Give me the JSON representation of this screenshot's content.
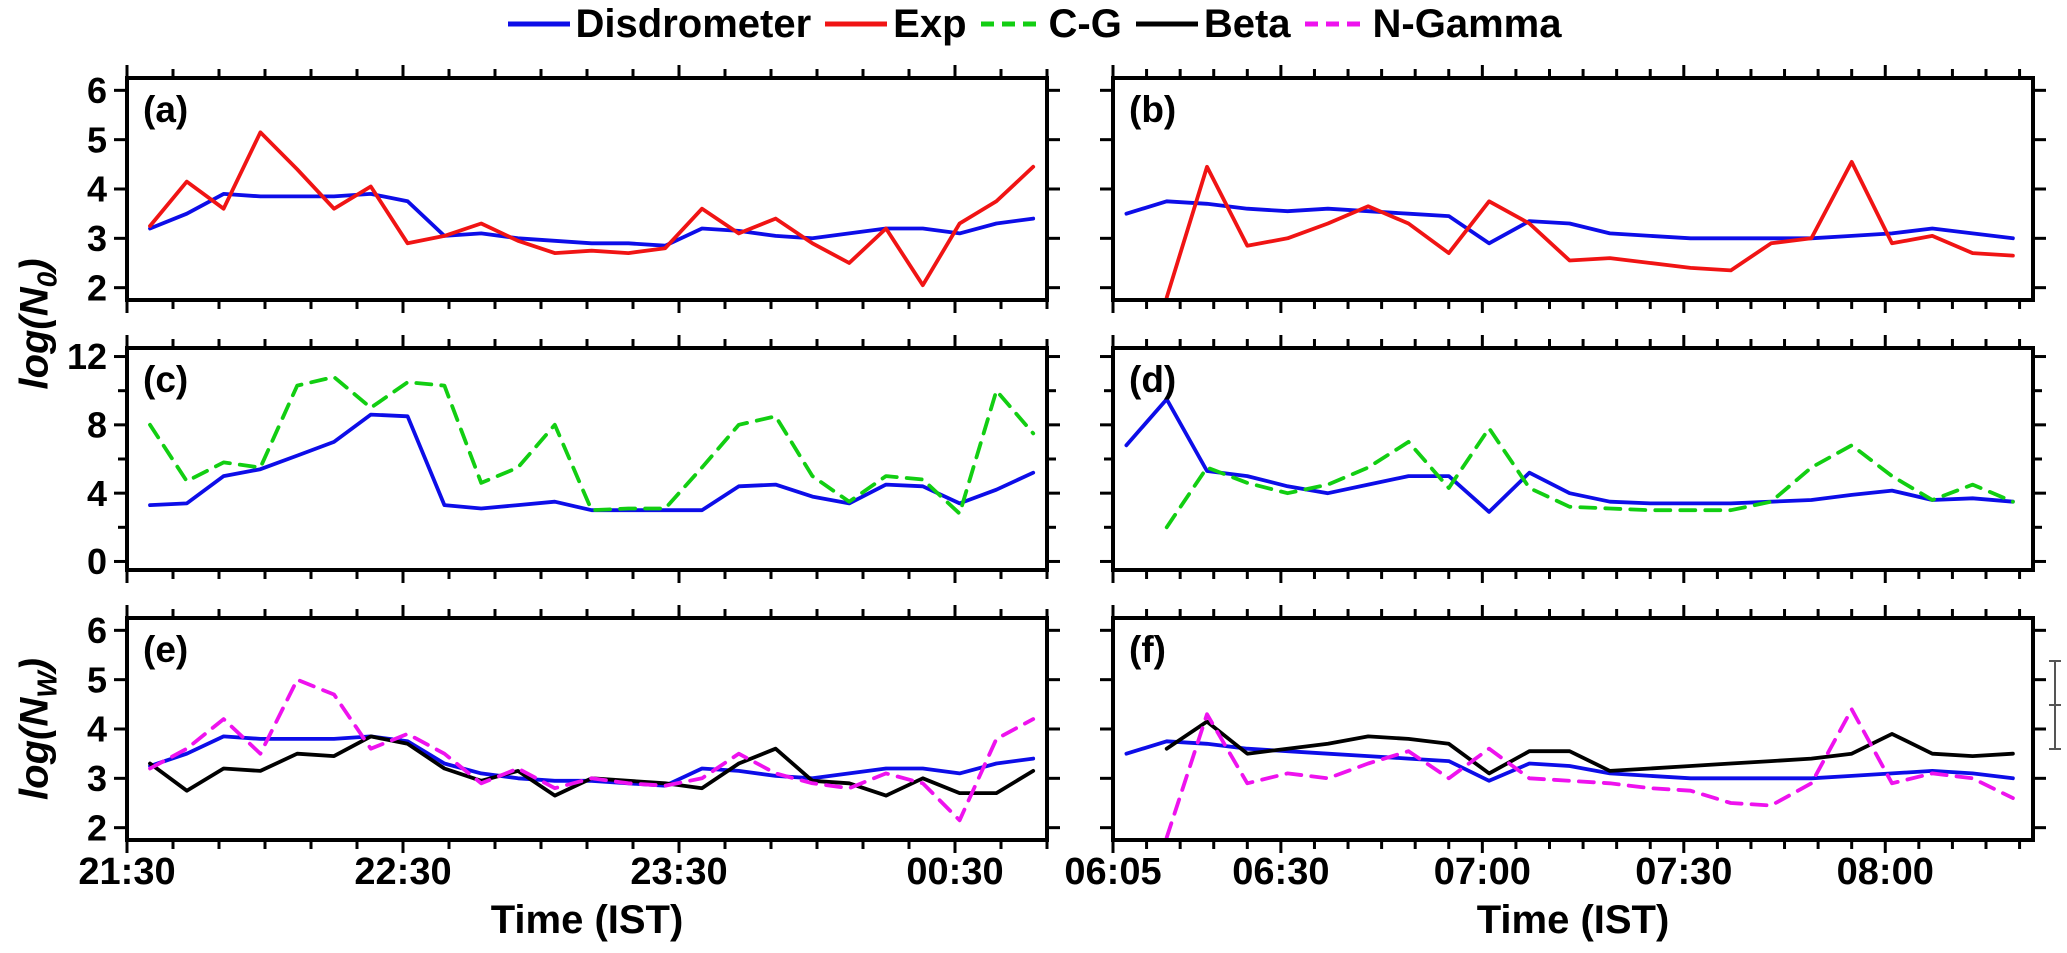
{
  "figure": {
    "background": "#ffffff",
    "axis_color": "#000000",
    "legend": {
      "items": [
        {
          "label": "Disdrometer",
          "color": "#0d0de8",
          "style": "solid"
        },
        {
          "label": "Exp",
          "color": "#f01414",
          "style": "solid"
        },
        {
          "label": "C-G",
          "color": "#12ce12",
          "style": "dashed"
        },
        {
          "label": "Beta",
          "color": "#000000",
          "style": "solid"
        },
        {
          "label": "N-Gamma",
          "color": "#ee12ee",
          "style": "dashed"
        }
      ]
    },
    "ylabels": [
      {
        "pre": "log(N",
        "sub": "0",
        "post": ")"
      },
      {
        "pre": "log(N",
        "sub": "W",
        "post": ")"
      }
    ]
  },
  "chart_data": {
    "type": "line",
    "columns": [
      {
        "xlabel": "Time (IST)",
        "x_range": [
          0,
          200
        ],
        "minor_step": 10,
        "major_ticks": [
          {
            "pos": 0,
            "label": "21:30"
          },
          {
            "pos": 60,
            "label": "22:30"
          },
          {
            "pos": 120,
            "label": "23:30"
          },
          {
            "pos": 180,
            "label": "00:30"
          }
        ],
        "x": [
          5,
          13,
          21,
          29,
          37,
          45,
          53,
          61,
          69,
          77,
          85,
          93,
          101,
          109,
          117,
          125,
          133,
          141,
          149,
          157,
          165,
          173,
          181,
          189,
          197
        ]
      },
      {
        "xlabel": "Time (IST)",
        "x_range": [
          0,
          137
        ],
        "minor_step": 5,
        "major_ticks": [
          {
            "pos": 0,
            "label": "06:05"
          },
          {
            "pos": 25,
            "label": "06:30"
          },
          {
            "pos": 55,
            "label": "07:00"
          },
          {
            "pos": 85,
            "label": "07:30"
          },
          {
            "pos": 115,
            "label": "08:00"
          }
        ],
        "x": [
          2,
          8,
          14,
          20,
          26,
          32,
          38,
          44,
          50,
          56,
          62,
          68,
          74,
          80,
          86,
          92,
          98,
          104,
          110,
          116,
          122,
          128,
          134
        ]
      }
    ],
    "rows": [
      {
        "y_range": [
          1.75,
          6.25
        ],
        "major_ticks": [
          2,
          3,
          4,
          5,
          6
        ],
        "minor_ticks": [],
        "tick_labels": [
          "2",
          "3",
          "4",
          "5",
          "6"
        ]
      },
      {
        "y_range": [
          -0.5,
          12.5
        ],
        "major_ticks": [
          0,
          4,
          8,
          12
        ],
        "minor_ticks": [
          2,
          6,
          10
        ],
        "tick_labels": [
          "0",
          "4",
          "8",
          "12"
        ]
      },
      {
        "y_range": [
          1.75,
          6.25
        ],
        "major_ticks": [
          2,
          3,
          4,
          5,
          6
        ],
        "minor_ticks": [],
        "tick_labels": [
          "2",
          "3",
          "4",
          "5",
          "6"
        ]
      }
    ],
    "panels": [
      {
        "id": "a",
        "label": "(a)",
        "row": 0,
        "col": 0,
        "series": [
          {
            "name": "Disdrometer",
            "y": [
              3.2,
              3.5,
              3.9,
              3.85,
              3.85,
              3.85,
              3.9,
              3.75,
              3.05,
              3.1,
              3.0,
              2.95,
              2.9,
              2.9,
              2.85,
              3.2,
              3.15,
              3.05,
              3.0,
              3.1,
              3.2,
              3.2,
              3.1,
              3.3,
              3.4
            ]
          },
          {
            "name": "Exp",
            "y": [
              3.25,
              4.15,
              3.6,
              5.15,
              4.4,
              3.6,
              4.05,
              2.9,
              3.05,
              3.3,
              2.95,
              2.7,
              2.75,
              2.7,
              2.8,
              3.6,
              3.1,
              3.4,
              2.9,
              2.5,
              3.2,
              2.05,
              3.3,
              3.75,
              4.45
            ]
          }
        ]
      },
      {
        "id": "b",
        "label": "(b)",
        "row": 0,
        "col": 1,
        "series": [
          {
            "name": "Disdrometer",
            "y": [
              3.5,
              3.75,
              3.7,
              3.6,
              3.55,
              3.6,
              3.55,
              3.5,
              3.45,
              2.9,
              3.35,
              3.3,
              3.1,
              3.05,
              3.0,
              3.0,
              3.0,
              3.0,
              3.05,
              3.1,
              3.2,
              3.1,
              3.0
            ]
          },
          {
            "name": "Exp",
            "y": [
              null,
              1.8,
              4.45,
              2.85,
              3.0,
              3.3,
              3.65,
              3.3,
              2.7,
              3.75,
              3.3,
              2.55,
              2.6,
              2.5,
              2.4,
              2.35,
              2.9,
              3.0,
              4.55,
              2.9,
              3.05,
              2.7,
              2.65
            ]
          }
        ]
      },
      {
        "id": "c",
        "label": "(c)",
        "row": 1,
        "col": 0,
        "series": [
          {
            "name": "Disdrometer",
            "y": [
              3.3,
              3.4,
              5.0,
              5.4,
              6.2,
              7.0,
              8.6,
              8.5,
              3.3,
              3.1,
              3.3,
              3.5,
              3.0,
              3.0,
              3.0,
              3.0,
              4.4,
              4.5,
              3.8,
              3.4,
              4.5,
              4.4,
              3.4,
              4.2,
              5.2
            ]
          },
          {
            "name": "C-G",
            "y": [
              8.0,
              4.7,
              5.8,
              5.5,
              10.3,
              10.8,
              9.0,
              10.5,
              10.3,
              4.6,
              5.5,
              8.0,
              3.0,
              3.1,
              3.1,
              5.5,
              8.0,
              8.5,
              5.0,
              3.5,
              5.0,
              4.8,
              2.8,
              10.0,
              7.5
            ]
          }
        ]
      },
      {
        "id": "d",
        "label": "(d)",
        "row": 1,
        "col": 1,
        "series": [
          {
            "name": "Disdrometer",
            "y": [
              6.8,
              9.5,
              5.3,
              5.0,
              4.4,
              4.0,
              4.5,
              5.0,
              5.0,
              2.9,
              5.2,
              4.0,
              3.5,
              3.4,
              3.4,
              3.4,
              3.5,
              3.6,
              3.9,
              4.15,
              3.6,
              3.7,
              3.5
            ]
          },
          {
            "name": "C-G",
            "y": [
              null,
              2.0,
              5.5,
              4.6,
              4.0,
              4.5,
              5.5,
              7.0,
              4.3,
              7.8,
              4.3,
              3.2,
              3.1,
              3.0,
              3.0,
              3.0,
              3.5,
              5.5,
              6.8,
              5.0,
              3.6,
              4.5,
              3.5
            ]
          }
        ]
      },
      {
        "id": "e",
        "label": "(e)",
        "row": 2,
        "col": 0,
        "series": [
          {
            "name": "Disdrometer",
            "y": [
              3.25,
              3.5,
              3.85,
              3.8,
              3.8,
              3.8,
              3.85,
              3.75,
              3.3,
              3.1,
              3.0,
              2.95,
              2.95,
              2.9,
              2.85,
              3.2,
              3.15,
              3.05,
              3.0,
              3.1,
              3.2,
              3.2,
              3.1,
              3.3,
              3.4
            ]
          },
          {
            "name": "Beta",
            "y": [
              3.3,
              2.75,
              3.2,
              3.15,
              3.5,
              3.45,
              3.85,
              3.7,
              3.2,
              2.95,
              3.15,
              2.65,
              3.0,
              2.95,
              2.9,
              2.8,
              3.3,
              3.6,
              2.95,
              2.9,
              2.65,
              3.0,
              2.7,
              2.7,
              3.15
            ]
          },
          {
            "name": "N-Gamma",
            "y": [
              3.2,
              3.6,
              4.2,
              3.5,
              5.0,
              4.7,
              3.6,
              3.9,
              3.5,
              2.9,
              3.2,
              2.8,
              3.0,
              2.9,
              2.85,
              3.0,
              3.5,
              3.1,
              2.9,
              2.8,
              3.1,
              2.9,
              2.15,
              3.8,
              4.2
            ]
          }
        ]
      },
      {
        "id": "f",
        "label": "(f)",
        "row": 2,
        "col": 1,
        "series": [
          {
            "name": "Disdrometer",
            "y": [
              3.5,
              3.75,
              3.7,
              3.6,
              3.55,
              3.5,
              3.45,
              3.4,
              3.35,
              2.95,
              3.3,
              3.25,
              3.1,
              3.05,
              3.0,
              3.0,
              3.0,
              3.0,
              3.05,
              3.1,
              3.15,
              3.1,
              3.0
            ]
          },
          {
            "name": "Beta",
            "y": [
              null,
              3.6,
              4.15,
              3.5,
              3.6,
              3.7,
              3.85,
              3.8,
              3.7,
              3.1,
              3.55,
              3.55,
              3.15,
              3.2,
              3.25,
              3.3,
              3.35,
              3.4,
              3.5,
              3.9,
              3.5,
              3.45,
              3.5
            ]
          },
          {
            "name": "N-Gamma",
            "y": [
              null,
              1.8,
              4.3,
              2.9,
              3.1,
              3.0,
              3.3,
              3.55,
              3.0,
              3.6,
              3.0,
              2.95,
              2.9,
              2.8,
              2.75,
              2.5,
              2.45,
              2.9,
              4.4,
              2.9,
              3.1,
              3.0,
              2.6
            ]
          }
        ]
      }
    ]
  }
}
